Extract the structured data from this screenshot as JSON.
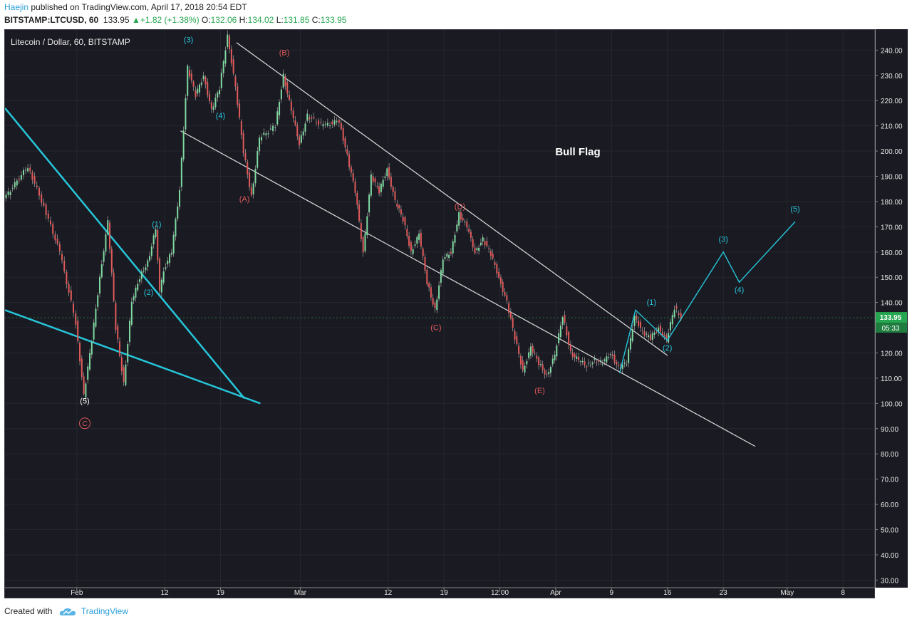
{
  "header": {
    "author": "Haejin",
    "published_text": "published on TradingView.com, April 17, 2018 20:54 EDT",
    "symbol": "BITSTAMP:LTCUSD, 60",
    "last": "133.95",
    "change": "+1.82 (+1.38%)",
    "o_label": "O:",
    "o_value": "132.06",
    "h_label": "H:",
    "h_value": "134.02",
    "l_label": "L:",
    "l_value": "131.85",
    "c_label": "C:",
    "c_value": "133.95"
  },
  "footer": {
    "created_with": "Created with",
    "brand": "TradingView"
  },
  "chart_data": {
    "type": "line",
    "title": "Litecoin / Dollar, 60, BITSTAMP",
    "annotation": "Bull Flag",
    "price_ticks": [
      240,
      230,
      220,
      210,
      200,
      190,
      180,
      170,
      160,
      150,
      140,
      130,
      120,
      110,
      100,
      90,
      80,
      70,
      60,
      50,
      40,
      30
    ],
    "price_tick_labels": [
      "240.00",
      "230.00",
      "220.00",
      "210.00",
      "200.00",
      "190.00",
      "180.00",
      "170.00",
      "160.00",
      "150.00",
      "140.00",
      "130.00",
      "120.00",
      "110.00",
      "100.00",
      "90.00",
      "80.00",
      "70.00",
      "60.00",
      "50.00",
      "40.00",
      "30.00"
    ],
    "ylim": [
      27,
      248
    ],
    "xlim": [
      "2018-01-23",
      "2018-05-12"
    ],
    "x_ticks": [
      {
        "date": "2018-02-01",
        "label": "Feb"
      },
      {
        "date": "2018-02-12",
        "label": "12"
      },
      {
        "date": "2018-02-19",
        "label": "19"
      },
      {
        "date": "2018-03-01",
        "label": "Mar"
      },
      {
        "date": "2018-03-12",
        "label": "12"
      },
      {
        "date": "2018-03-19",
        "label": "19"
      },
      {
        "date": "2018-03-26",
        "label": "12:00"
      },
      {
        "date": "2018-04-02",
        "label": "Apr"
      },
      {
        "date": "2018-04-09",
        "label": "9"
      },
      {
        "date": "2018-04-16",
        "label": "16"
      },
      {
        "date": "2018-04-23",
        "label": "23"
      },
      {
        "date": "2018-05-01",
        "label": "May"
      },
      {
        "date": "2018-05-08",
        "label": "8"
      }
    ],
    "current_price": {
      "value": 133.95,
      "label": "133.95",
      "countdown": "05:33",
      "color": "#26a650"
    },
    "price_series": {
      "name": "LTCUSD",
      "points": [
        [
          "2018-01-23",
          181
        ],
        [
          "2018-01-26",
          194
        ],
        [
          "2018-01-28",
          178
        ],
        [
          "2018-01-30",
          160
        ],
        [
          "2018-02-01",
          132
        ],
        [
          "2018-02-02",
          103
        ],
        [
          "2018-02-03",
          125
        ],
        [
          "2018-02-04",
          150
        ],
        [
          "2018-02-05",
          172
        ],
        [
          "2018-02-06",
          130
        ],
        [
          "2018-02-07",
          108
        ],
        [
          "2018-02-08",
          140
        ],
        [
          "2018-02-09",
          150
        ],
        [
          "2018-02-10",
          156
        ],
        [
          "2018-02-11",
          169
        ],
        [
          "2018-02-11T12:00",
          144
        ],
        [
          "2018-02-12",
          153
        ],
        [
          "2018-02-13",
          160
        ],
        [
          "2018-02-14",
          185
        ],
        [
          "2018-02-15",
          233
        ],
        [
          "2018-02-16",
          222
        ],
        [
          "2018-02-17",
          230
        ],
        [
          "2018-02-18",
          216
        ],
        [
          "2018-02-19",
          225
        ],
        [
          "2018-02-20",
          246
        ],
        [
          "2018-02-21",
          225
        ],
        [
          "2018-02-22",
          200
        ],
        [
          "2018-02-23",
          182
        ],
        [
          "2018-02-24",
          205
        ],
        [
          "2018-02-26",
          210
        ],
        [
          "2018-02-27",
          230
        ],
        [
          "2018-02-28",
          216
        ],
        [
          "2018-03-01",
          203
        ],
        [
          "2018-03-02",
          214
        ],
        [
          "2018-03-04",
          210
        ],
        [
          "2018-03-06",
          212
        ],
        [
          "2018-03-07",
          198
        ],
        [
          "2018-03-08",
          184
        ],
        [
          "2018-03-09",
          160
        ],
        [
          "2018-03-10",
          190
        ],
        [
          "2018-03-11",
          184
        ],
        [
          "2018-03-12",
          193
        ],
        [
          "2018-03-13",
          180
        ],
        [
          "2018-03-14",
          173
        ],
        [
          "2018-03-15",
          160
        ],
        [
          "2018-03-16",
          167
        ],
        [
          "2018-03-17",
          148
        ],
        [
          "2018-03-18",
          137
        ],
        [
          "2018-03-19",
          157
        ],
        [
          "2018-03-20",
          160
        ],
        [
          "2018-03-21",
          175
        ],
        [
          "2018-03-22",
          170
        ],
        [
          "2018-03-23",
          160
        ],
        [
          "2018-03-24",
          165
        ],
        [
          "2018-03-25",
          159
        ],
        [
          "2018-03-26",
          150
        ],
        [
          "2018-03-27",
          140
        ],
        [
          "2018-03-28",
          126
        ],
        [
          "2018-03-29",
          113
        ],
        [
          "2018-03-30",
          122
        ],
        [
          "2018-03-31",
          116
        ],
        [
          "2018-04-01",
          111
        ],
        [
          "2018-04-02",
          119
        ],
        [
          "2018-04-03",
          135
        ],
        [
          "2018-04-04",
          120
        ],
        [
          "2018-04-05",
          117
        ],
        [
          "2018-04-06",
          115
        ],
        [
          "2018-04-07",
          117
        ],
        [
          "2018-04-08",
          116
        ],
        [
          "2018-04-09",
          120
        ],
        [
          "2018-04-10",
          114
        ],
        [
          "2018-04-11",
          116
        ],
        [
          "2018-04-12",
          135
        ],
        [
          "2018-04-13",
          128
        ],
        [
          "2018-04-14",
          126
        ],
        [
          "2018-04-15",
          130
        ],
        [
          "2018-04-16",
          125
        ],
        [
          "2018-04-17",
          138
        ],
        [
          "2018-04-17T20:00",
          134
        ]
      ]
    },
    "projection": {
      "name": "projection",
      "color": "#26c6da",
      "points": [
        [
          "2018-04-10",
          112
        ],
        [
          "2018-04-12",
          137
        ],
        [
          "2018-04-16",
          125
        ],
        [
          "2018-04-23",
          160
        ],
        [
          "2018-04-25",
          148
        ],
        [
          "2018-05-02",
          172
        ]
      ]
    },
    "trendlines": [
      {
        "name": "descending-line",
        "color": "#26c6da",
        "from": [
          "2018-01-23",
          217
        ],
        "to": [
          "2018-02-22",
          102
        ]
      },
      {
        "name": "lower-wedge-line",
        "color": "#26c6da",
        "from": [
          "2018-01-23",
          137
        ],
        "to": [
          "2018-02-24",
          100
        ]
      },
      {
        "name": "channel-upper",
        "color": "#dddddd",
        "from": [
          "2018-02-21",
          243
        ],
        "to": [
          "2018-04-16",
          119
        ]
      },
      {
        "name": "channel-lower",
        "color": "#dddddd",
        "from": [
          "2018-02-14",
          208
        ],
        "to": [
          "2018-04-27",
          83
        ]
      }
    ],
    "wave_labels": [
      {
        "text": "(5)",
        "at": [
          "2018-02-02",
          100
        ],
        "color": "#ffffff"
      },
      {
        "text": "C",
        "at": [
          "2018-02-02",
          91
        ],
        "color": "#e05a5a",
        "circled": true
      },
      {
        "text": "(1)",
        "at": [
          "2018-02-11",
          170
        ],
        "color": "#26c6da"
      },
      {
        "text": "(2)",
        "at": [
          "2018-02-10",
          143
        ],
        "color": "#26c6da"
      },
      {
        "text": "(3)",
        "at": [
          "2018-02-15",
          243
        ],
        "color": "#26c6da"
      },
      {
        "text": "(4)",
        "at": [
          "2018-02-19",
          213
        ],
        "color": "#26c6da"
      },
      {
        "text": "(A)",
        "at": [
          "2018-02-22",
          180
        ],
        "color": "#e05a5a"
      },
      {
        "text": "(B)",
        "at": [
          "2018-02-27",
          238
        ],
        "color": "#e05a5a"
      },
      {
        "text": "(C)",
        "at": [
          "2018-03-18",
          129
        ],
        "color": "#e05a5a"
      },
      {
        "text": "(D)",
        "at": [
          "2018-03-21",
          177
        ],
        "color": "#e05a5a"
      },
      {
        "text": "(E)",
        "at": [
          "2018-03-31",
          104
        ],
        "color": "#e05a5a"
      },
      {
        "text": "(1)",
        "at": [
          "2018-04-14",
          139
        ],
        "color": "#26c6da"
      },
      {
        "text": "(2)",
        "at": [
          "2018-04-16",
          121
        ],
        "color": "#26c6da"
      },
      {
        "text": "(3)",
        "at": [
          "2018-04-23",
          164
        ],
        "color": "#26c6da"
      },
      {
        "text": "(4)",
        "at": [
          "2018-04-25",
          144
        ],
        "color": "#26c6da"
      },
      {
        "text": "(5)",
        "at": [
          "2018-05-02",
          176
        ],
        "color": "#26c6da"
      }
    ]
  }
}
